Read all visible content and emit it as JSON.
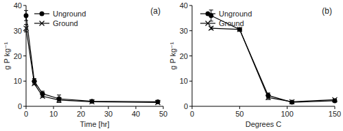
{
  "chart_data": [
    {
      "type": "line",
      "title": "(a)",
      "x_label": "Time [hr]",
      "y_label": "g P kg⁻¹",
      "x": [
        0,
        3,
        6,
        12,
        24,
        48
      ],
      "series": [
        {
          "name": "Unground",
          "color": "#000000",
          "marker": "circle",
          "line_style": "solid",
          "values": [
            36,
            10,
            5,
            3,
            2,
            1.8
          ],
          "errors": [
            2,
            1,
            1,
            1.5,
            0.4,
            0.3
          ]
        },
        {
          "name": "Ground",
          "color": "#000000",
          "marker": "x",
          "line_style": "solid",
          "values": [
            31,
            9,
            4,
            2.5,
            1.8,
            1.5
          ],
          "errors": [
            1.5,
            0.5,
            0.5,
            0.5,
            0.3,
            0.3
          ]
        }
      ],
      "xlim": [
        0,
        50
      ],
      "xticks": [
        0,
        10,
        20,
        30,
        40,
        50
      ],
      "ylim": [
        0,
        40
      ],
      "yticks": [
        0,
        10,
        20,
        30,
        40
      ],
      "grid": false,
      "legend": "upper left"
    },
    {
      "type": "line",
      "title": "(b)",
      "x_label": "Degrees C",
      "y_label": "g P kg⁻¹",
      "x": [
        20,
        50,
        80,
        105,
        150
      ],
      "series": [
        {
          "name": "Unground",
          "color": "#000000",
          "marker": "circle",
          "line_style": "solid",
          "values": [
            36,
            30.5,
            4.3,
            1.6,
            2.2
          ],
          "errors": [
            2.2,
            0.3,
            1,
            0.3,
            0.3
          ]
        },
        {
          "name": "Ground",
          "color": "#000000",
          "marker": "x",
          "line_style": "solid",
          "values": [
            31,
            30.5,
            3.5,
            1.8,
            2.6
          ],
          "errors": [
            0.5,
            0.3,
            0.8,
            0.3,
            0.3
          ]
        }
      ],
      "xlim": [
        0,
        150
      ],
      "xticks": [
        0,
        50,
        100,
        150
      ],
      "ylim": [
        0,
        40
      ],
      "yticks": [
        0,
        10,
        20,
        30,
        40
      ],
      "grid": false,
      "legend": "upper left"
    }
  ]
}
